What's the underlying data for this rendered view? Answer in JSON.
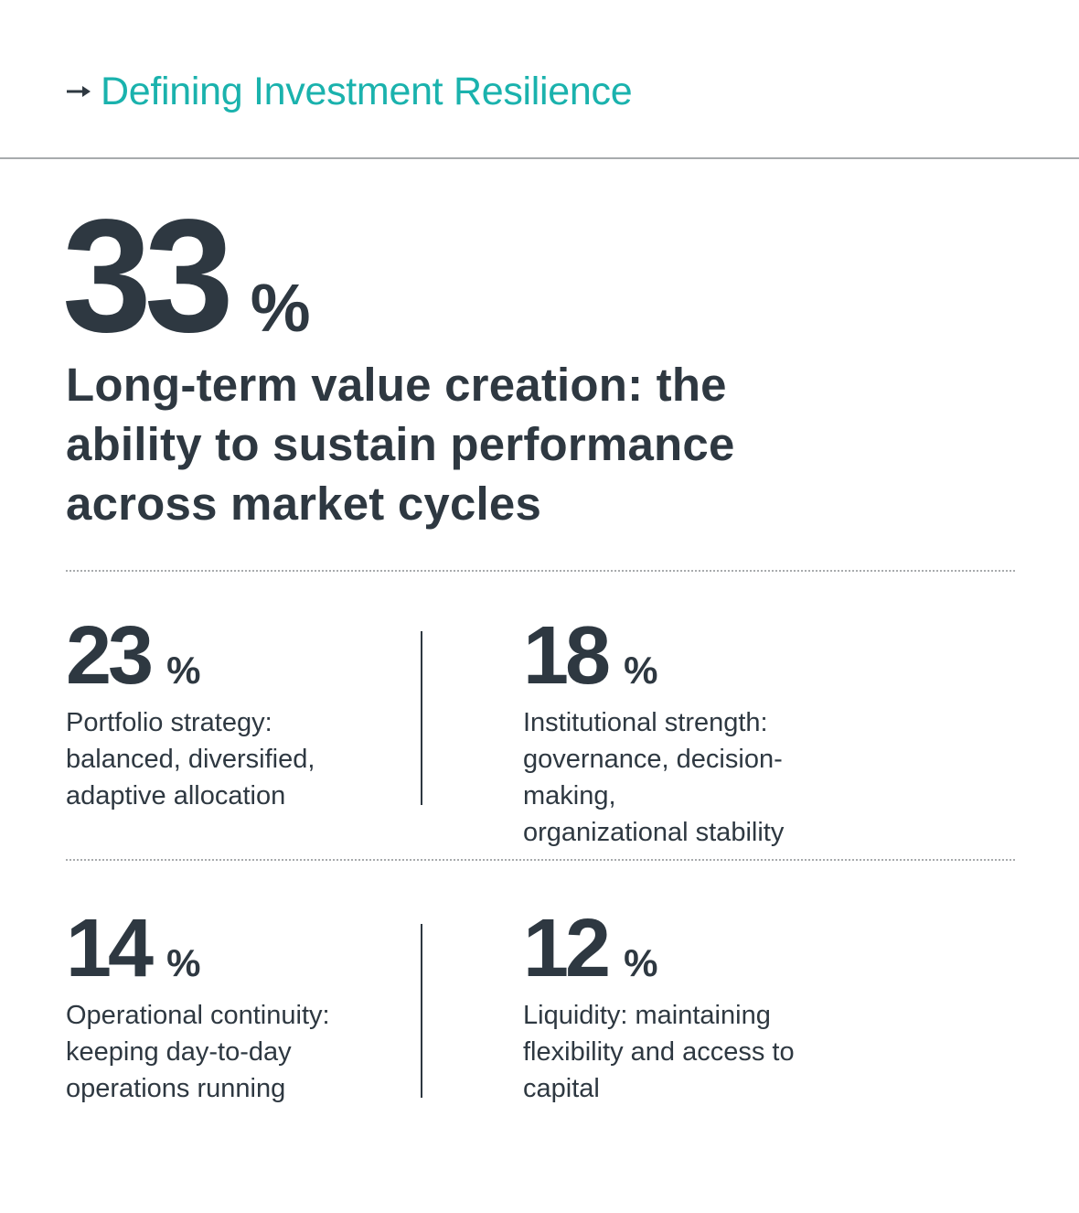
{
  "header": {
    "title": "Defining Investment Resilience",
    "icon": "arrow-right-icon",
    "accent_color": "#1ab2ad"
  },
  "hero": {
    "value": "33",
    "unit": "%",
    "caption_lines": [
      "Long-term value creation: the",
      "ability to sustain performance",
      "across market cycles"
    ]
  },
  "stats": [
    {
      "value": "23",
      "unit": "%",
      "lines": [
        "Portfolio strategy:",
        "balanced, diversified,",
        "adaptive allocation"
      ]
    },
    {
      "value": "18",
      "unit": "%",
      "lines": [
        "Institutional strength:",
        "governance, decision-making,",
        "organizational stability"
      ]
    },
    {
      "value": "14",
      "unit": "%",
      "lines": [
        "Operational continuity:",
        "keeping day-to-day",
        "operations running"
      ]
    },
    {
      "value": "12",
      "unit": "%",
      "lines": [
        "Liquidity: maintaining",
        "flexibility and access to",
        "capital"
      ]
    }
  ],
  "colors": {
    "text": "#2e3841",
    "accent": "#1ab2ad",
    "rule": "#a8abad"
  }
}
